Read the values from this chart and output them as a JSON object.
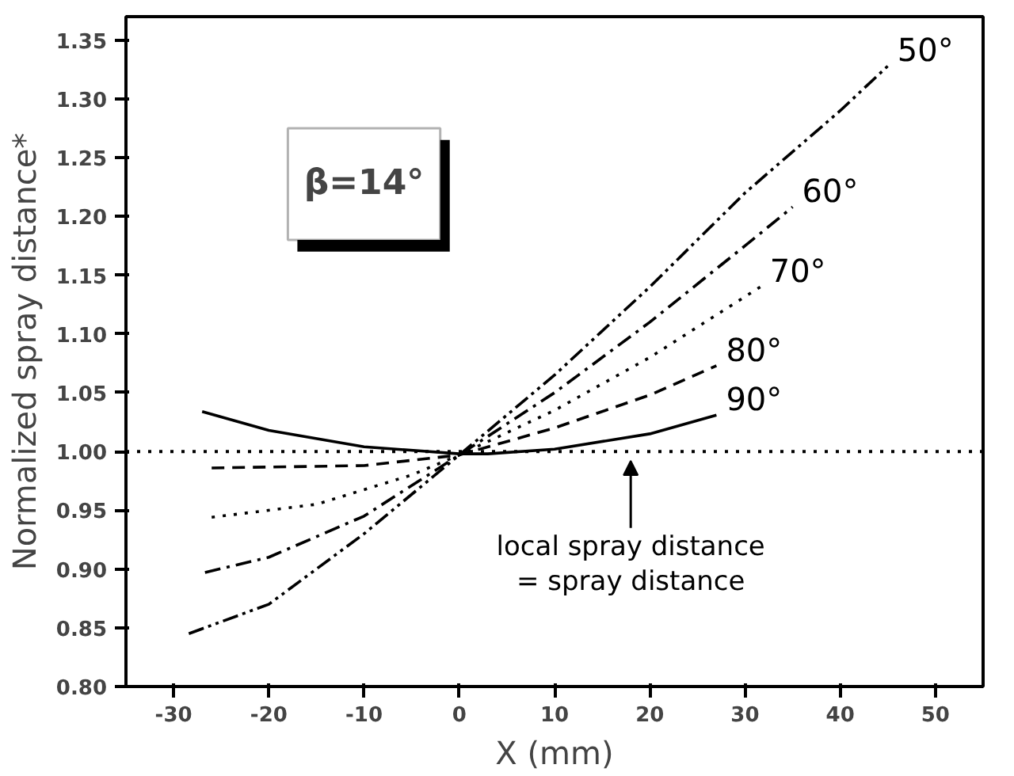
{
  "chart_data": {
    "type": "line",
    "xlabel": "X (mm)",
    "ylabel": "Normalized spray distance*",
    "xlim": [
      -35,
      55
    ],
    "ylim": [
      0.8,
      1.37
    ],
    "xticks": [
      -30,
      -20,
      -10,
      0,
      10,
      20,
      30,
      40,
      50
    ],
    "yticks": [
      {
        "value": 0.8,
        "label": "0.80"
      },
      {
        "value": 0.85,
        "label": "0.85"
      },
      {
        "value": 0.9,
        "label": "0.90"
      },
      {
        "value": 0.95,
        "label": "0.95"
      },
      {
        "value": 1.0,
        "label": "1.00"
      },
      {
        "value": 1.05,
        "label": "1.05"
      },
      {
        "value": 1.1,
        "label": "1.10"
      },
      {
        "value": 1.15,
        "label": "1.15"
      },
      {
        "value": 1.2,
        "label": "1.20"
      },
      {
        "value": 1.25,
        "label": "1.25"
      },
      {
        "value": 1.3,
        "label": "1.30"
      },
      {
        "value": 1.35,
        "label": "1.35"
      }
    ],
    "grid": false,
    "marker": "none",
    "series": [
      {
        "name": "50°",
        "color": "#000000",
        "line_style": "dashdotdot",
        "x": [
          -28.4,
          -20,
          -10,
          0,
          10,
          20,
          30,
          40,
          45
        ],
        "values": [
          0.845,
          0.87,
          0.93,
          0.997,
          1.065,
          1.14,
          1.22,
          1.29,
          1.328
        ]
      },
      {
        "name": "60°",
        "color": "#000000",
        "line_style": "dashdot",
        "x": [
          -26.7,
          -20,
          -10,
          0,
          10,
          20,
          30,
          35
        ],
        "values": [
          0.897,
          0.91,
          0.945,
          0.997,
          1.05,
          1.11,
          1.175,
          1.208
        ]
      },
      {
        "name": "70°",
        "color": "#000000",
        "line_style": "dotted",
        "x": [
          -26,
          -15,
          -5,
          0,
          10,
          20,
          31.6
        ],
        "values": [
          0.944,
          0.955,
          0.98,
          0.997,
          1.035,
          1.08,
          1.14
        ]
      },
      {
        "name": "80°",
        "color": "#000000",
        "line_style": "dashed",
        "x": [
          -26,
          -10,
          0,
          10,
          20,
          27
        ],
        "values": [
          0.986,
          0.988,
          0.997,
          1.02,
          1.048,
          1.073
        ]
      },
      {
        "name": "90°",
        "color": "#000000",
        "line_style": "solid",
        "x": [
          -27,
          -20,
          -10,
          0,
          3,
          10,
          20,
          27
        ],
        "values": [
          1.034,
          1.018,
          1.004,
          0.998,
          0.998,
          1.002,
          1.015,
          1.031
        ]
      }
    ],
    "ref_lines": [
      {
        "axis": "y",
        "value": 1.0,
        "label": null,
        "color": "#000000",
        "line_style": "dotted"
      }
    ],
    "annotations": [
      "β=14°",
      {
        "text": "local spray distance\n= spray distance",
        "x": 18,
        "y": 1.0
      }
    ]
  }
}
